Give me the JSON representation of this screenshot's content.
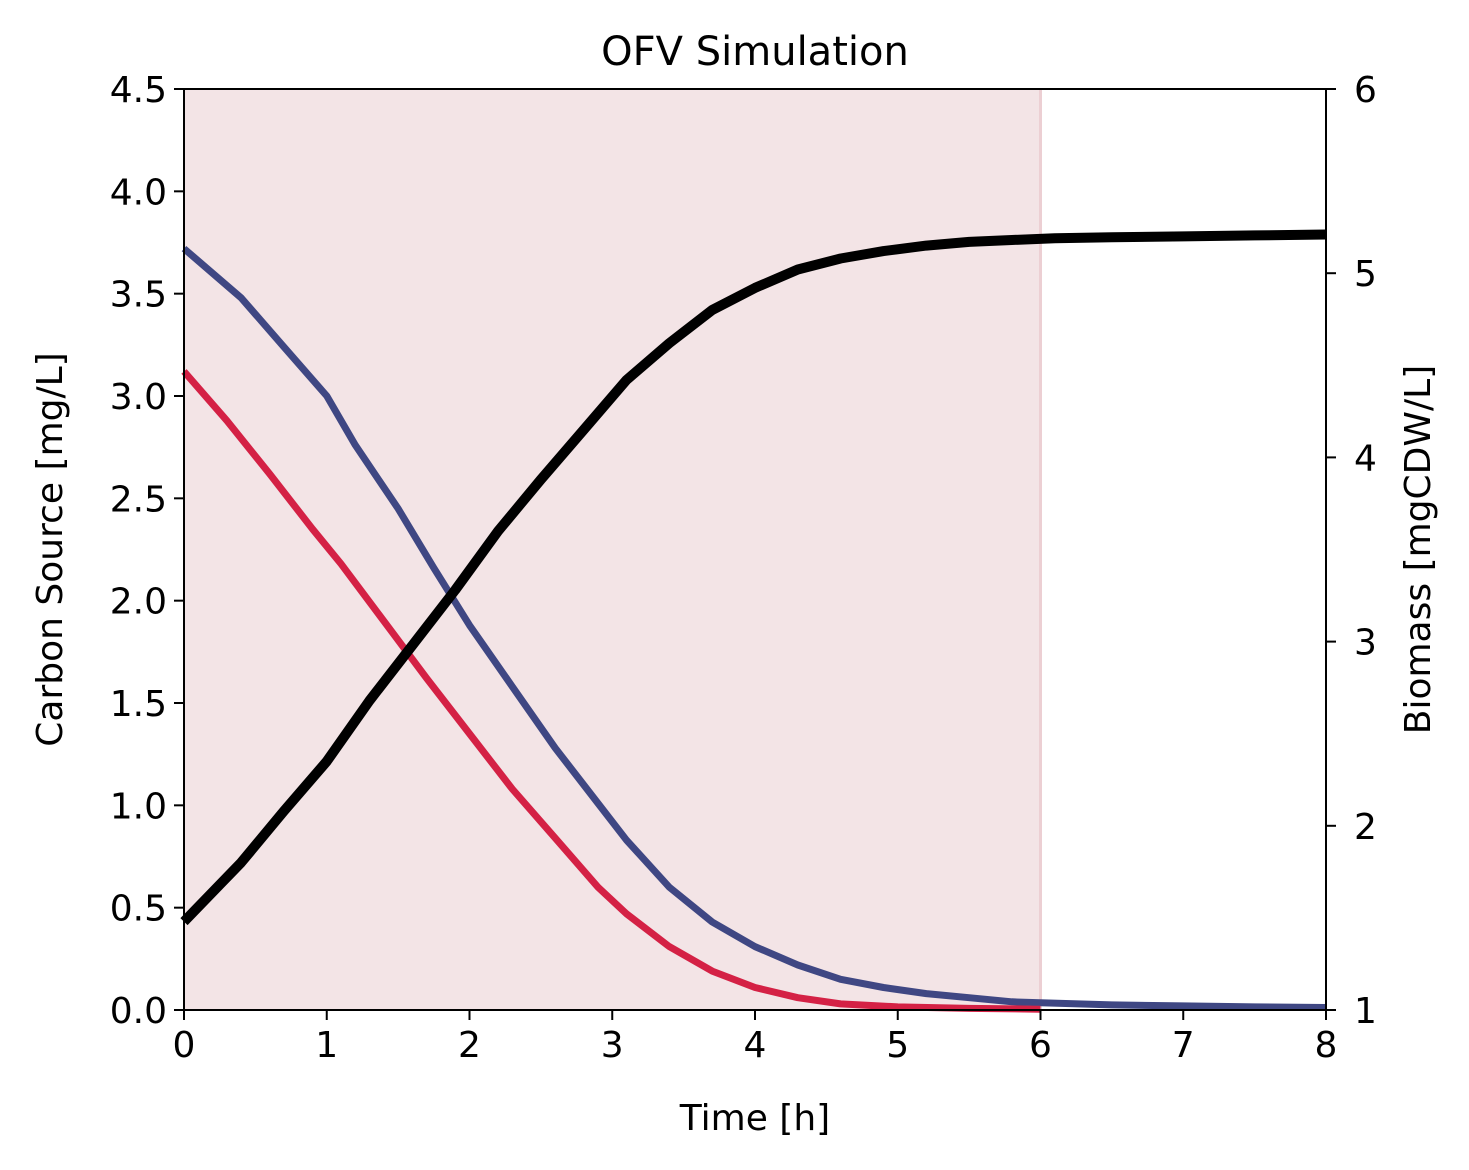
{
  "chart_data": {
    "type": "line",
    "title": "OFV Simulation",
    "xlabel": "Time [h]",
    "ylabel": "Carbon Source [mg/L]",
    "y2label": "Biomass [mgCDW/L]",
    "xlim": [
      0,
      8
    ],
    "ylim": [
      0,
      4.5
    ],
    "y2lim": [
      1,
      6
    ],
    "xticks": [
      "0",
      "1",
      "2",
      "3",
      "4",
      "5",
      "6",
      "7",
      "8"
    ],
    "yticks": [
      "0.0",
      "0.5",
      "1.0",
      "1.5",
      "2.0",
      "2.5",
      "3.0",
      "3.5",
      "4.0",
      "4.5"
    ],
    "y2ticks": [
      "1",
      "2",
      "3",
      "4",
      "5",
      "6"
    ],
    "grid": false,
    "shaded_region": {
      "x": [
        0,
        6
      ],
      "color": "#f3e4e6"
    },
    "series": [
      {
        "axis": "left",
        "color": "#3f4783",
        "x": [
          0,
          0.4,
          0.7,
          1.0,
          1.2,
          1.5,
          1.75,
          2.0,
          2.3,
          2.6,
          2.9,
          3.1,
          3.4,
          3.7,
          4.0,
          4.3,
          4.6,
          4.9,
          5.2,
          5.5,
          5.8,
          6.0,
          6.5,
          7.0,
          7.5,
          8.0
        ],
        "values": [
          3.72,
          3.48,
          3.24,
          3.0,
          2.76,
          2.45,
          2.16,
          1.88,
          1.58,
          1.28,
          1.01,
          0.83,
          0.6,
          0.43,
          0.31,
          0.22,
          0.15,
          0.11,
          0.08,
          0.06,
          0.04,
          0.035,
          0.025,
          0.02,
          0.015,
          0.012
        ]
      },
      {
        "axis": "left",
        "color": "#d42145",
        "x": [
          0,
          0.3,
          0.6,
          0.9,
          1.1,
          1.4,
          1.7,
          2.0,
          2.3,
          2.6,
          2.9,
          3.1,
          3.4,
          3.7,
          4.0,
          4.3,
          4.6,
          5.0,
          5.5,
          6.0
        ],
        "values": [
          3.12,
          2.88,
          2.62,
          2.35,
          2.18,
          1.9,
          1.62,
          1.35,
          1.08,
          0.84,
          0.6,
          0.47,
          0.31,
          0.19,
          0.11,
          0.06,
          0.03,
          0.015,
          0.008,
          0.004
        ]
      },
      {
        "axis": "right",
        "color": "#000000",
        "x": [
          0,
          0.4,
          0.7,
          1.0,
          1.3,
          1.6,
          1.9,
          2.2,
          2.5,
          2.8,
          3.1,
          3.4,
          3.7,
          4.0,
          4.3,
          4.6,
          4.9,
          5.2,
          5.5,
          5.8,
          6.1,
          6.5,
          7.0,
          7.5,
          8.0
        ],
        "values": [
          1.48,
          1.8,
          2.08,
          2.35,
          2.68,
          2.98,
          3.28,
          3.6,
          3.88,
          4.15,
          4.42,
          4.62,
          4.8,
          4.92,
          5.02,
          5.08,
          5.12,
          5.15,
          5.17,
          5.18,
          5.19,
          5.195,
          5.2,
          5.205,
          5.21
        ]
      }
    ]
  }
}
